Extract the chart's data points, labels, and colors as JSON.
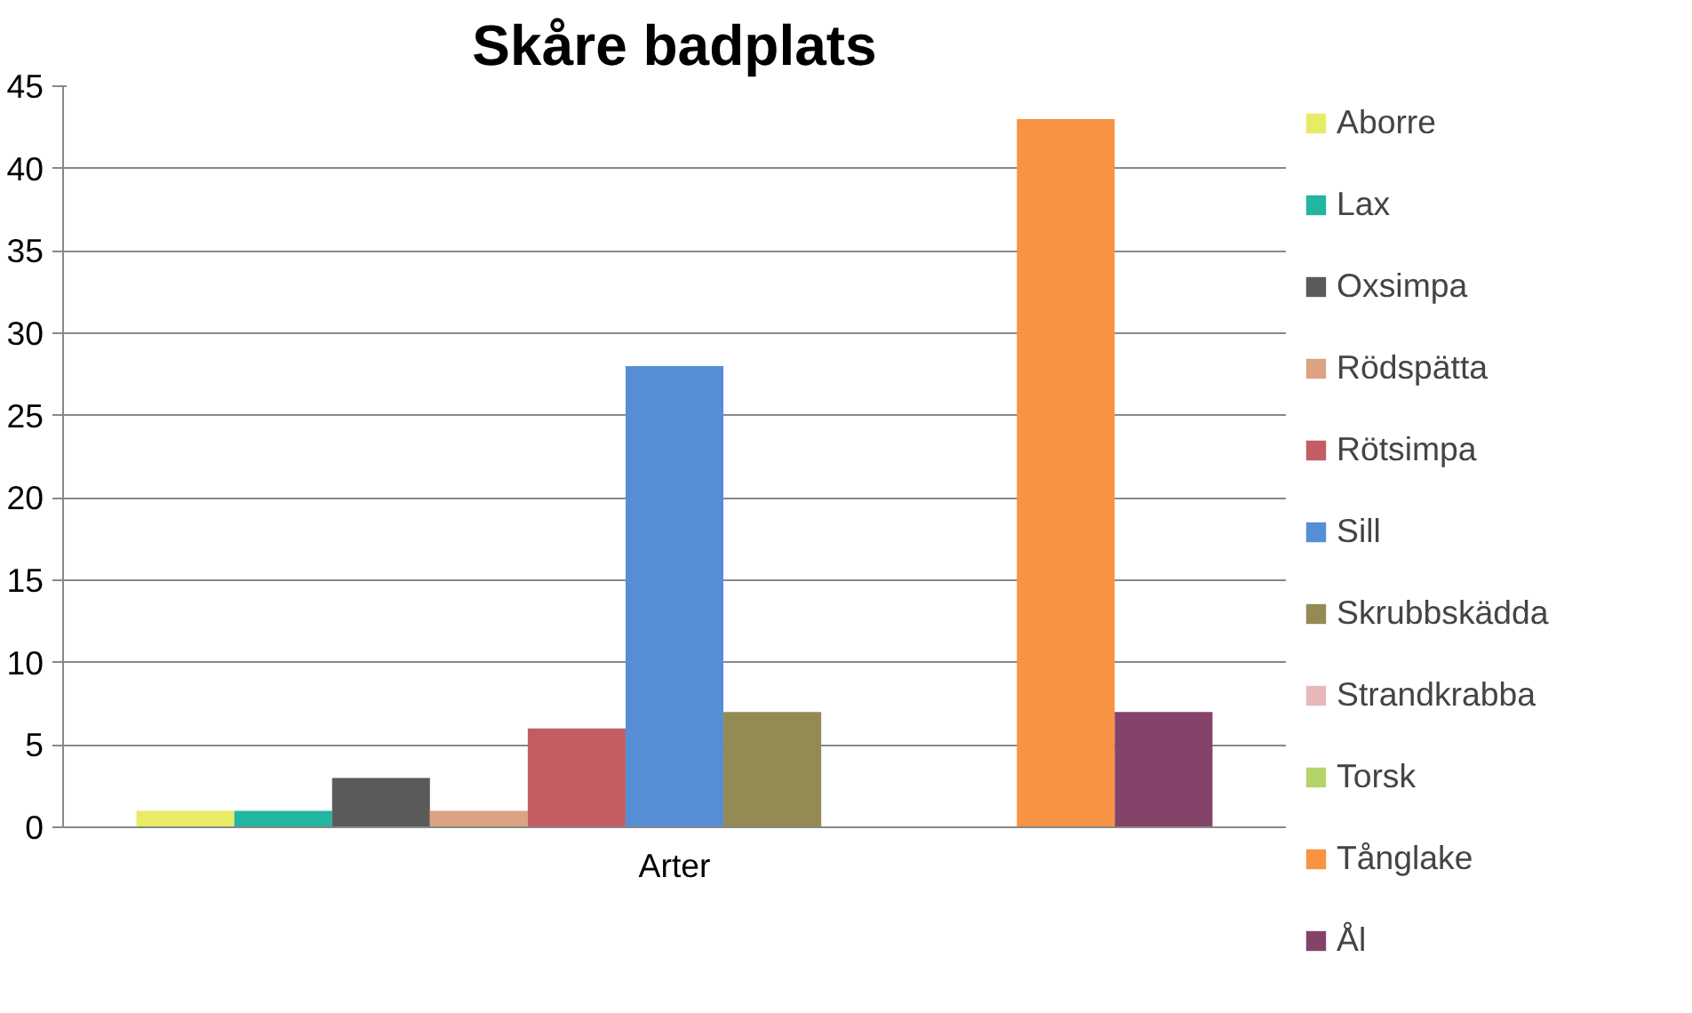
{
  "chart_data": {
    "type": "bar",
    "title": "Skåre badplats",
    "categories": [
      "Arter"
    ],
    "series": [
      {
        "name": "Aborre",
        "color": "#e8eb65",
        "values": [
          1
        ]
      },
      {
        "name": "Lax",
        "color": "#22b5a0",
        "values": [
          1
        ]
      },
      {
        "name": "Oxsimpa",
        "color": "#5a5a5a",
        "values": [
          3
        ]
      },
      {
        "name": "Rödspätta",
        "color": "#dba383",
        "values": [
          1
        ]
      },
      {
        "name": "Rötsimpa",
        "color": "#c45c64",
        "values": [
          6
        ]
      },
      {
        "name": "Sill",
        "color": "#558ed5",
        "values": [
          28
        ]
      },
      {
        "name": "Skrubbskädda",
        "color": "#948a54",
        "values": [
          7
        ]
      },
      {
        "name": "Strandkrabba",
        "color": "#e6b9b8",
        "values": [
          0
        ]
      },
      {
        "name": "Torsk",
        "color": "#b3d46a",
        "values": [
          0
        ]
      },
      {
        "name": "Tånglake",
        "color": "#f79342",
        "values": [
          43
        ]
      },
      {
        "name": "Ål",
        "color": "#86436a",
        "values": [
          7
        ]
      }
    ],
    "ylim": [
      0,
      45
    ],
    "yticks": [
      0,
      5,
      10,
      15,
      20,
      25,
      30,
      35,
      40,
      45
    ],
    "grid": "y",
    "legend": "right"
  }
}
